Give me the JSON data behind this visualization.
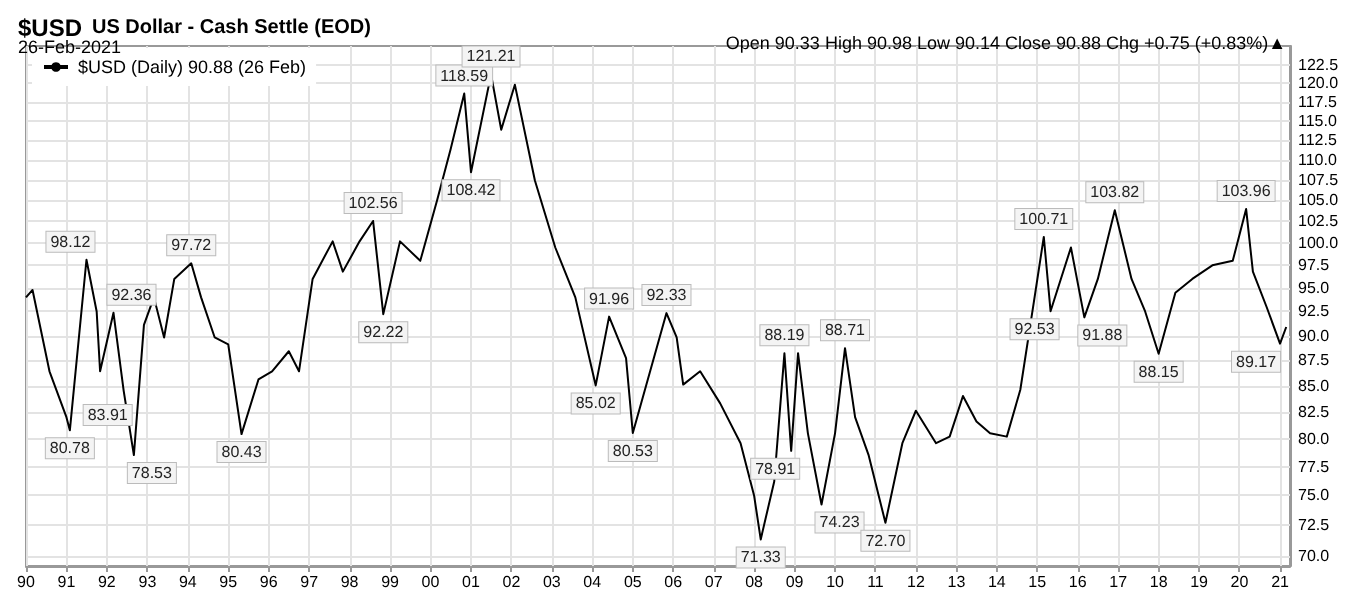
{
  "chart_data": {
    "type": "line",
    "title": "$USD US Dollar - Cash Settle (EOD)",
    "subtitle": "26-Feb-2021",
    "annotations": [
      "Open 90.33 High 90.98 Low 90.14 Close 90.88 Chg +0.75 (+0.83%)▲",
      {
        "text": "80.78",
        "x": "1991-02",
        "y": 80.78
      },
      {
        "text": "98.12",
        "x": "1991-07",
        "y": 98.12
      },
      {
        "text": "92.36",
        "x": "1992-03",
        "y": 92.36
      },
      {
        "text": "83.91",
        "x": "1992-06",
        "y": 83.91
      },
      {
        "text": "78.53",
        "x": "1992-09",
        "y": 78.53
      },
      {
        "text": "97.72",
        "x": "1994-02",
        "y": 97.72
      },
      {
        "text": "80.43",
        "x": "1995-05",
        "y": 80.43
      },
      {
        "text": "102.56",
        "x": "1998-08",
        "y": 102.56
      },
      {
        "text": "92.22",
        "x": "1998-11",
        "y": 92.22
      },
      {
        "text": "118.59",
        "x": "2000-11",
        "y": 118.59
      },
      {
        "text": "108.42",
        "x": "2001-01",
        "y": 108.42
      },
      {
        "text": "121.21",
        "x": "2001-07",
        "y": 121.21
      },
      {
        "text": "85.02",
        "x": "2004-02",
        "y": 85.02
      },
      {
        "text": "91.96",
        "x": "2004-06",
        "y": 91.96
      },
      {
        "text": "80.53",
        "x": "2005-01",
        "y": 80.53
      },
      {
        "text": "92.33",
        "x": "2005-11",
        "y": 92.33
      },
      {
        "text": "71.33",
        "x": "2008-03",
        "y": 71.33
      },
      {
        "text": "88.19",
        "x": "2008-10",
        "y": 88.19
      },
      {
        "text": "78.91",
        "x": "2008-12",
        "y": 78.91
      },
      {
        "text": "74.23",
        "x": "2009-09",
        "y": 74.23
      },
      {
        "text": "88.71",
        "x": "2010-04",
        "y": 88.71
      },
      {
        "text": "72.70",
        "x": "2011-04",
        "y": 72.7
      },
      {
        "text": "100.71",
        "x": "2015-03",
        "y": 100.71
      },
      {
        "text": "92.53",
        "x": "2015-05",
        "y": 92.53
      },
      {
        "text": "91.88",
        "x": "2016-03",
        "y": 91.88
      },
      {
        "text": "103.82",
        "x": "2016-12",
        "y": 103.82
      },
      {
        "text": "88.15",
        "x": "2018-01",
        "y": 88.15
      },
      {
        "text": "103.96",
        "x": "2020-03",
        "y": 103.96
      },
      {
        "text": "89.17",
        "x": "2021-01",
        "y": 89.17
      }
    ],
    "x": [
      "1990-01",
      "1990-03",
      "1990-08",
      "1991-01",
      "1991-02",
      "1991-07",
      "1991-10",
      "1991-11",
      "1992-03",
      "1992-06",
      "1992-09",
      "1992-12",
      "1993-03",
      "1993-06",
      "1993-09",
      "1994-02",
      "1994-05",
      "1994-09",
      "1995-01",
      "1995-05",
      "1995-10",
      "1996-02",
      "1996-07",
      "1996-10",
      "1997-02",
      "1997-08",
      "1997-11",
      "1998-04",
      "1998-08",
      "1998-11",
      "1999-04",
      "1999-10",
      "2000-03",
      "2000-07",
      "2000-11",
      "2001-01",
      "2001-07",
      "2001-10",
      "2002-02",
      "2002-08",
      "2003-02",
      "2003-08",
      "2004-02",
      "2004-06",
      "2004-11",
      "2005-01",
      "2005-11",
      "2006-02",
      "2006-04",
      "2006-09",
      "2007-03",
      "2007-09",
      "2008-01",
      "2008-03",
      "2008-07",
      "2008-10",
      "2008-12",
      "2009-02",
      "2009-05",
      "2009-09",
      "2010-01",
      "2010-04",
      "2010-07",
      "2010-11",
      "2011-04",
      "2011-09",
      "2012-01",
      "2012-07",
      "2012-11",
      "2013-03",
      "2013-07",
      "2013-11",
      "2014-04",
      "2014-08",
      "2014-12",
      "2015-03",
      "2015-05",
      "2015-11",
      "2016-03",
      "2016-07",
      "2016-12",
      "2017-05",
      "2017-09",
      "2018-01",
      "2018-06",
      "2018-11",
      "2019-05",
      "2019-11",
      "2020-03",
      "2020-05",
      "2020-09",
      "2021-01",
      "2021-02-26"
    ],
    "series": [
      {
        "name": "$USD (Daily) 90.88 (26 Feb)",
        "color": "#000000",
        "values": [
          94.0,
          94.8,
          86.4,
          82.0,
          80.78,
          98.12,
          92.5,
          86.4,
          92.36,
          84.5,
          78.53,
          91.1,
          94.0,
          89.8,
          96.0,
          97.72,
          94.0,
          89.8,
          89.1,
          80.43,
          85.6,
          86.4,
          88.4,
          86.4,
          96.0,
          100.2,
          96.8,
          100.2,
          102.56,
          92.22,
          100.2,
          98.0,
          105.0,
          111.3,
          118.59,
          108.42,
          121.21,
          113.8,
          119.8,
          107.4,
          99.5,
          94.0,
          85.02,
          91.96,
          87.7,
          80.53,
          92.33,
          89.8,
          85.1,
          86.4,
          83.3,
          79.6,
          75.0,
          71.33,
          76.2,
          88.19,
          78.91,
          88.2,
          80.5,
          74.23,
          80.5,
          88.71,
          82.0,
          78.5,
          72.7,
          79.6,
          82.6,
          79.6,
          80.2,
          84.0,
          81.6,
          80.5,
          80.2,
          84.6,
          93.5,
          100.71,
          92.53,
          99.5,
          91.88,
          96.0,
          103.82,
          96.0,
          92.5,
          88.15,
          94.5,
          96.0,
          97.5,
          98.0,
          103.96,
          96.8,
          93.0,
          89.17,
          90.88
        ]
      }
    ],
    "xlim": [
      "1990-01-01",
      "2021-04-01"
    ],
    "xticks": [
      {
        "value": "1990",
        "label": "90"
      },
      {
        "value": "1991",
        "label": "91"
      },
      {
        "value": "1992",
        "label": "92"
      },
      {
        "value": "1993",
        "label": "93"
      },
      {
        "value": "1994",
        "label": "94"
      },
      {
        "value": "1995",
        "label": "95"
      },
      {
        "value": "1996",
        "label": "96"
      },
      {
        "value": "1997",
        "label": "97"
      },
      {
        "value": "1998",
        "label": "98"
      },
      {
        "value": "1999",
        "label": "99"
      },
      {
        "value": "2000",
        "label": "00"
      },
      {
        "value": "2001",
        "label": "01"
      },
      {
        "value": "2002",
        "label": "02"
      },
      {
        "value": "2003",
        "label": "03"
      },
      {
        "value": "2004",
        "label": "04"
      },
      {
        "value": "2005",
        "label": "05"
      },
      {
        "value": "2006",
        "label": "06"
      },
      {
        "value": "2007",
        "label": "07"
      },
      {
        "value": "2008",
        "label": "08"
      },
      {
        "value": "2009",
        "label": "09"
      },
      {
        "value": "2010",
        "label": "10"
      },
      {
        "value": "2011",
        "label": "11"
      },
      {
        "value": "2012",
        "label": "12"
      },
      {
        "value": "2013",
        "label": "13"
      },
      {
        "value": "2014",
        "label": "14"
      },
      {
        "value": "2015",
        "label": "15"
      },
      {
        "value": "2016",
        "label": "16"
      },
      {
        "value": "2017",
        "label": "17"
      },
      {
        "value": "2018",
        "label": "18"
      },
      {
        "value": "2019",
        "label": "19"
      },
      {
        "value": "2020",
        "label": "20"
      },
      {
        "value": "2021",
        "label": "21"
      }
    ],
    "ylim": [
      69.2,
      125.2
    ],
    "yticks": [
      {
        "value": 70,
        "label": "70.0"
      },
      72.5,
      {
        "value": 75,
        "label": "75.0"
      },
      77.5,
      {
        "value": 80,
        "label": "80.0"
      },
      82.5,
      {
        "value": 85,
        "label": "85.0"
      },
      87.5,
      {
        "value": 90,
        "label": "90.0"
      },
      92.5,
      {
        "value": 95,
        "label": "95.0"
      },
      97.5,
      {
        "value": 100,
        "label": "100.0"
      },
      102.5,
      {
        "value": 105,
        "label": "105.0"
      },
      107.5,
      {
        "value": 110,
        "label": "110.0"
      },
      112.5,
      {
        "value": 115,
        "label": "115.0"
      },
      117.5,
      {
        "value": 120,
        "label": "120.0"
      },
      122.5
    ],
    "log": "y",
    "grid": true,
    "legend": "top left",
    "marker": "none"
  }
}
